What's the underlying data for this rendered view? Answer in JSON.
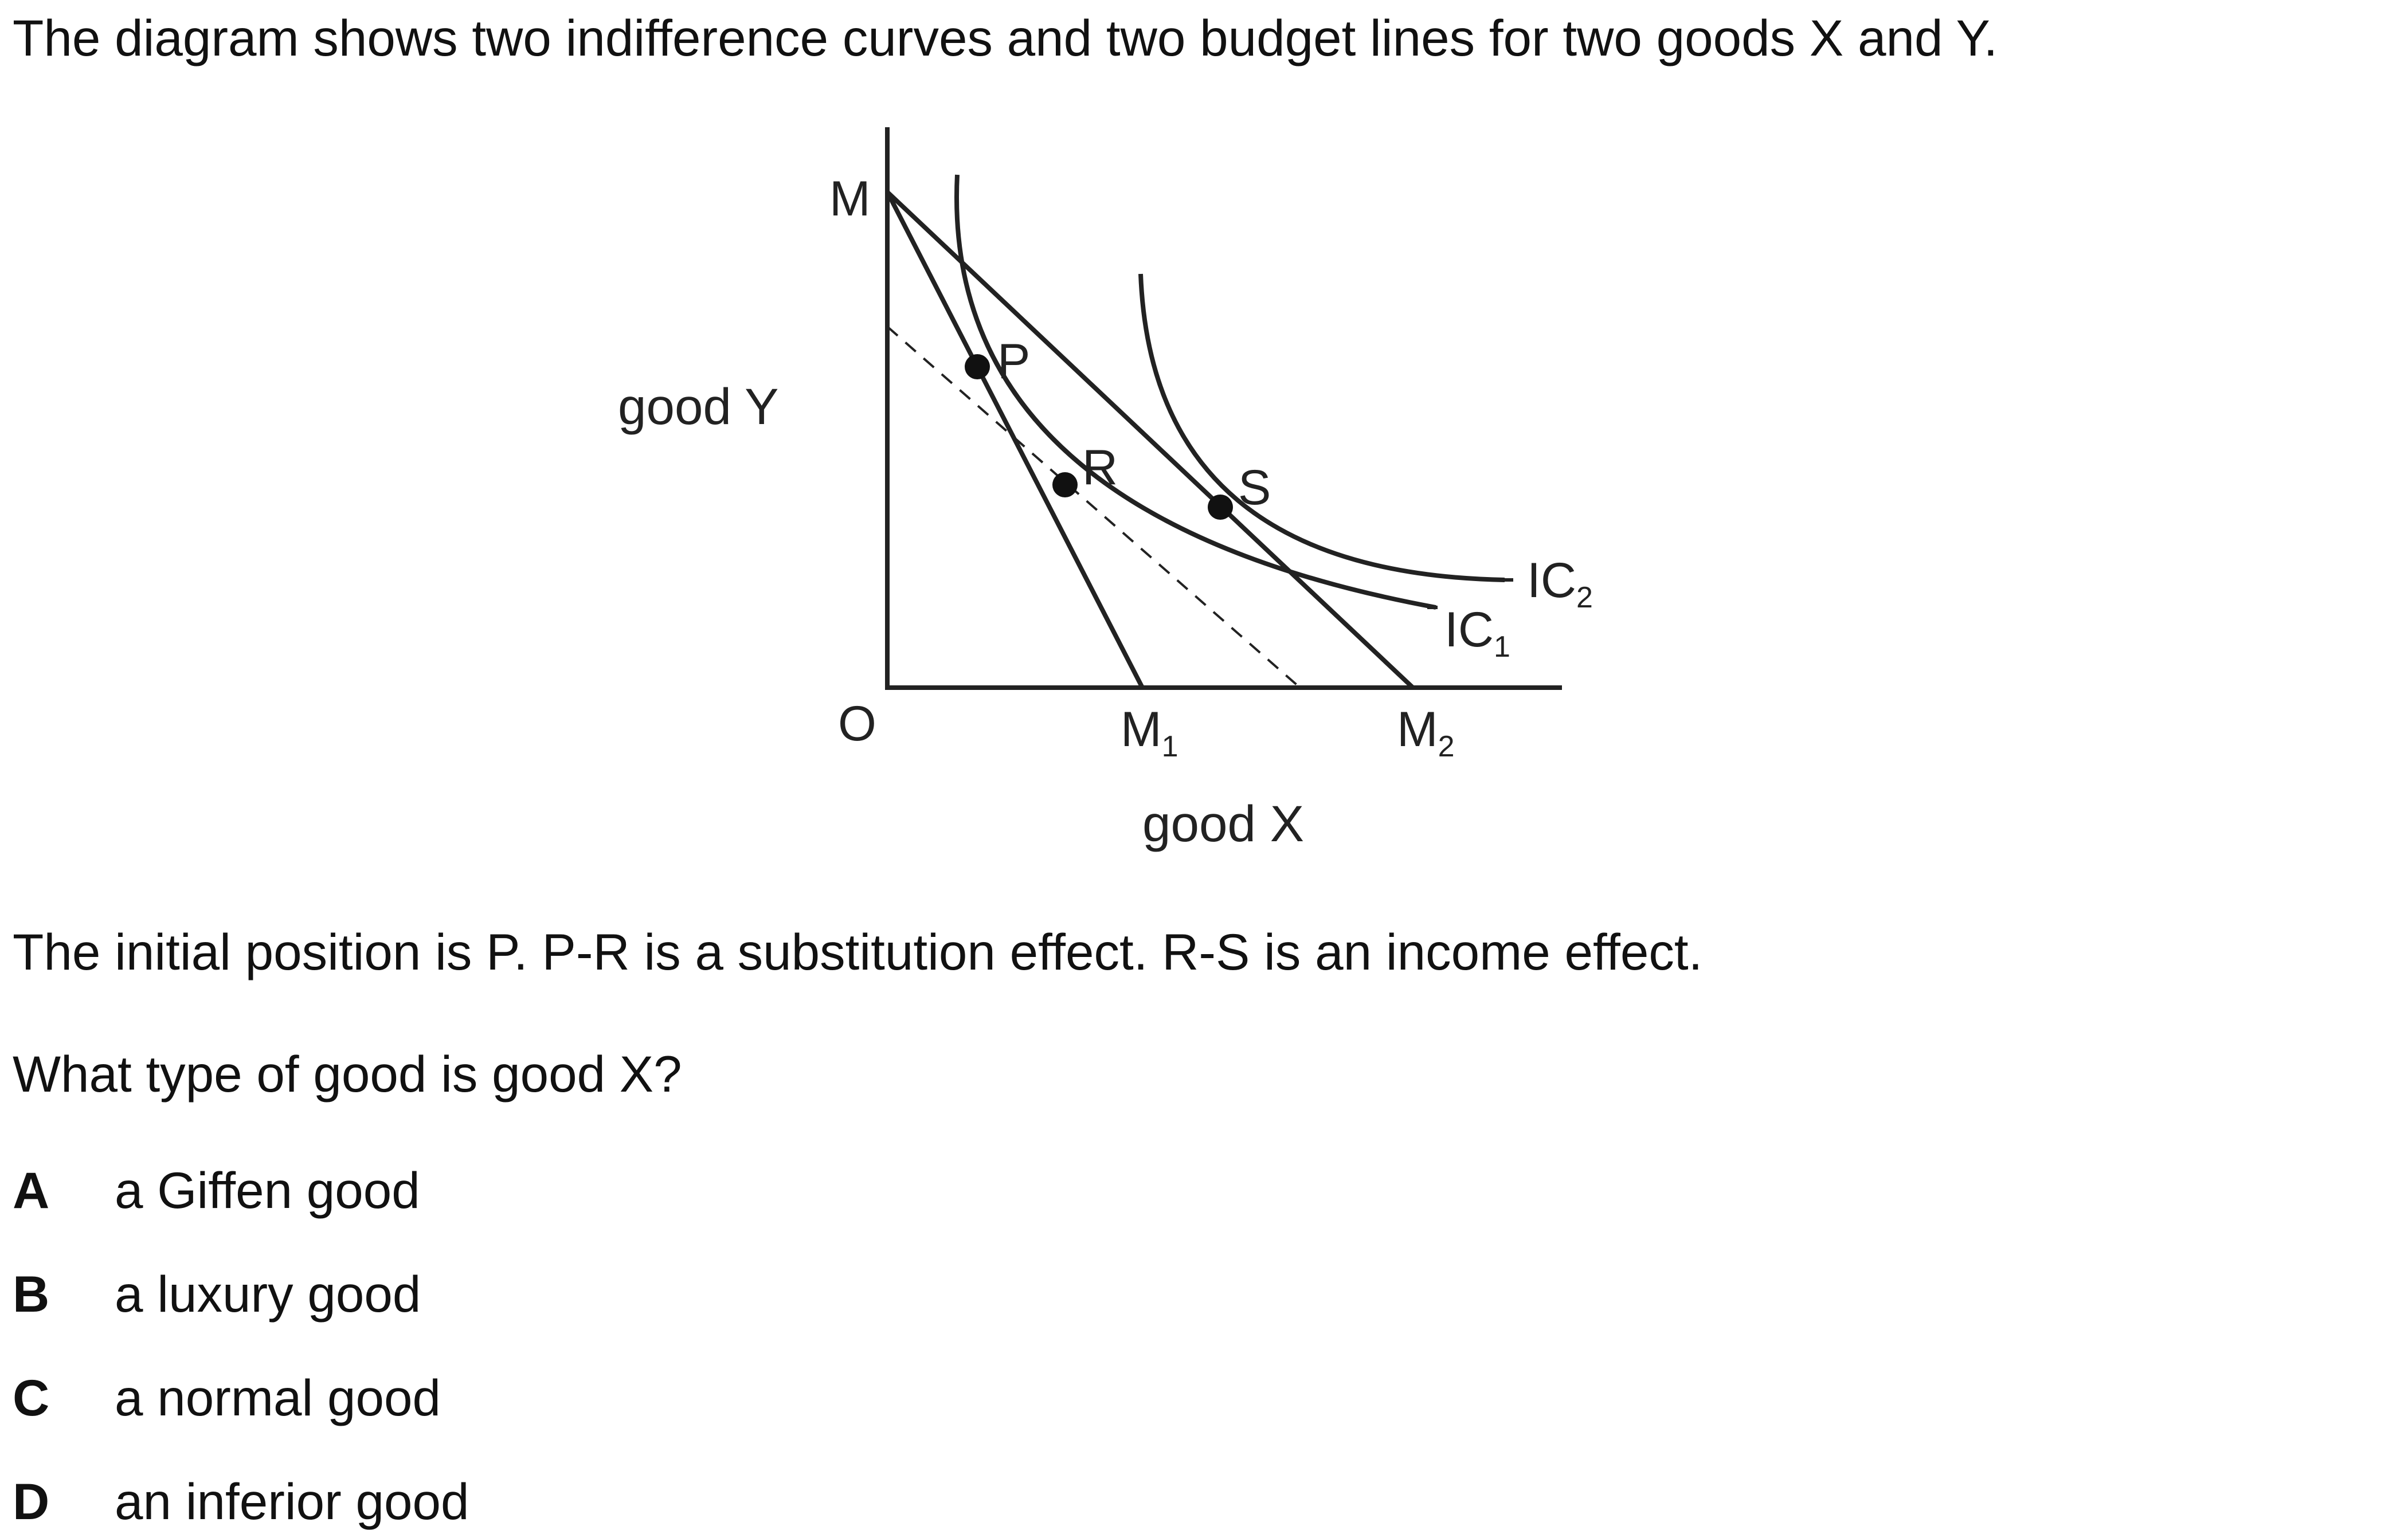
{
  "question": {
    "intro": "The diagram shows two indifference curves and two budget lines for two goods X and Y.",
    "statement": "The initial position is P. P-R is a substitution effect. R-S is an income effect.",
    "prompt": "What type of good is good X?"
  },
  "diagram": {
    "y_axis_label": "good Y",
    "x_axis_label": "good X",
    "origin_label": "O",
    "intercept_label": "M",
    "budget_line_labels": [
      {
        "main": "M",
        "sub": "1"
      },
      {
        "main": "M",
        "sub": "2"
      }
    ],
    "curve_labels": [
      {
        "main": "IC",
        "sub": "1"
      },
      {
        "main": "IC",
        "sub": "2"
      }
    ],
    "points": [
      "P",
      "R",
      "S"
    ]
  },
  "options": [
    {
      "letter": "A",
      "text": "a Giffen good"
    },
    {
      "letter": "B",
      "text": "a luxury good"
    },
    {
      "letter": "C",
      "text": "a normal good"
    },
    {
      "letter": "D",
      "text": "an inferior good"
    }
  ]
}
